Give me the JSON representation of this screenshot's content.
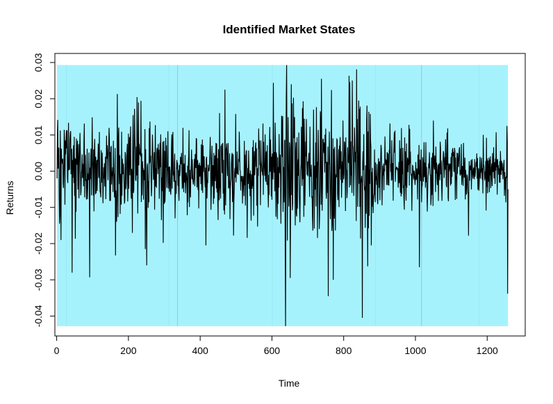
{
  "chart_data": {
    "type": "line",
    "title": "Identified Market States",
    "xlabel": "Time",
    "ylabel": "Returns",
    "xlim": [
      -5,
      1306
    ],
    "ylim": [
      -0.0455,
      0.0325
    ],
    "x_ticks": [
      0,
      200,
      400,
      600,
      800,
      1000,
      1200
    ],
    "x_tick_labels": [
      "0",
      "200",
      "400",
      "600",
      "800",
      "1000",
      "1200"
    ],
    "y_ticks": [
      -0.04,
      -0.03,
      -0.02,
      -0.01,
      0.0,
      0.01,
      0.02,
      0.03
    ],
    "y_tick_labels": [
      "-0.04",
      "-0.03",
      "-0.02",
      "-0.01",
      "0.00",
      "0.01",
      "0.02",
      "0.03"
    ],
    "grid": false,
    "state_band": {
      "x_start": 1,
      "x_end": 1258,
      "y_min": -0.0428,
      "y_max": 0.0293,
      "color": "#a6f2fc"
    },
    "state_boundaries": [
      {
        "x": 27,
        "color": "#98e8f4"
      },
      {
        "x": 313,
        "color": "#98e8f4"
      },
      {
        "x": 337,
        "color": "#b3b3e8"
      },
      {
        "x": 601,
        "color": "#98e8f4"
      },
      {
        "x": 889,
        "color": "#98e8f4"
      },
      {
        "x": 1017,
        "color": "#b3b3e8"
      },
      {
        "x": 1177,
        "color": "#98e8f4"
      }
    ],
    "series": [
      {
        "color": "#000000",
        "n_points": 1258,
        "baseline_volatility": 0.0065,
        "volatility_profile": [
          {
            "x": [
              1,
              330
            ],
            "scale": 1.0
          },
          {
            "x": [
              330,
              400
            ],
            "scale": 0.7
          },
          {
            "x": [
              400,
              600
            ],
            "scale": 0.95
          },
          {
            "x": [
              600,
              890
            ],
            "scale": 1.35
          },
          {
            "x": [
              890,
              1020
            ],
            "scale": 0.8
          },
          {
            "x": [
              1020,
              1258
            ],
            "scale": 0.65
          }
        ],
        "notable_points": [
          {
            "x": 1,
            "y": -0.002
          },
          {
            "x": 8,
            "y": -0.0145
          },
          {
            "x": 12,
            "y": -0.019
          },
          {
            "x": 43,
            "y": -0.028
          },
          {
            "x": 92,
            "y": -0.0293
          },
          {
            "x": 169,
            "y": 0.0213
          },
          {
            "x": 247,
            "y": -0.0215
          },
          {
            "x": 251,
            "y": -0.026
          },
          {
            "x": 297,
            "y": -0.0198
          },
          {
            "x": 416,
            "y": -0.0205
          },
          {
            "x": 469,
            "y": 0.0225
          },
          {
            "x": 638,
            "y": -0.0428
          },
          {
            "x": 641,
            "y": 0.0293
          },
          {
            "x": 651,
            "y": -0.0295
          },
          {
            "x": 654,
            "y": 0.024
          },
          {
            "x": 738,
            "y": 0.0255
          },
          {
            "x": 757,
            "y": -0.0345
          },
          {
            "x": 771,
            "y": -0.03
          },
          {
            "x": 842,
            "y": 0.0195
          },
          {
            "x": 852,
            "y": -0.0405
          },
          {
            "x": 1011,
            "y": -0.0265
          },
          {
            "x": 1148,
            "y": -0.0178
          },
          {
            "x": 1255,
            "y": 0.0125
          },
          {
            "x": 1257,
            "y": -0.0338
          },
          {
            "x": 1258,
            "y": -0.005
          }
        ]
      }
    ]
  }
}
